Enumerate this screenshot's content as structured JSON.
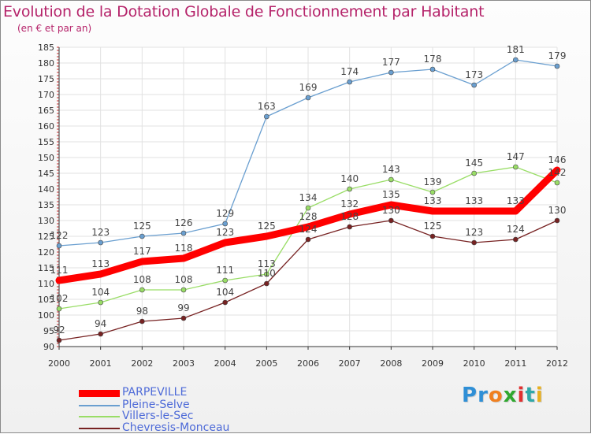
{
  "title": "Evolution de la Dotation Globale de Fonctionnement par Habitant",
  "subtitle": "(en € et par an)",
  "logo_letters": [
    "P",
    "r",
    "o",
    "x",
    "i",
    "t",
    "i"
  ],
  "logo_colors": [
    "#2f8fd6",
    "#2f8fd6",
    "#f08020",
    "#2fa82f",
    "#e03030",
    "#2fa8a8",
    "#e8b020"
  ],
  "chart_data": {
    "type": "line",
    "title": "Evolution de la Dotation Globale de Fonctionnement par Habitant",
    "subtitle": "(en € et par an)",
    "x": [
      "2000",
      "2001",
      "2002",
      "2003",
      "2004",
      "2005",
      "2006",
      "2007",
      "2008",
      "2009",
      "2010",
      "2011",
      "2012"
    ],
    "ylim": [
      90,
      185
    ],
    "yticks": [
      90,
      95,
      100,
      105,
      110,
      115,
      120,
      125,
      130,
      135,
      140,
      145,
      150,
      155,
      160,
      165,
      170,
      175,
      180,
      185
    ],
    "grid": true,
    "legend_position": "bottom-left",
    "series": [
      {
        "name": "PARPEVILLE",
        "color": "#ff0000",
        "values": [
          111,
          113,
          117,
          118,
          123,
          125,
          128,
          132,
          135,
          133,
          133,
          133,
          146
        ]
      },
      {
        "name": "Pleine-Selve",
        "color": "#6a9fd0",
        "values": [
          122,
          123,
          125,
          126,
          129,
          163,
          169,
          174,
          177,
          178,
          173,
          181,
          179
        ]
      },
      {
        "name": "Villers-le-Sec",
        "color": "#99dd66",
        "values": [
          102,
          104,
          108,
          108,
          111,
          113,
          134,
          140,
          143,
          139,
          145,
          147,
          142
        ]
      },
      {
        "name": "Chevresis-Monceau",
        "color": "#772222",
        "values": [
          92,
          94,
          98,
          99,
          104,
          110,
          124,
          128,
          130,
          125,
          123,
          124,
          130
        ]
      }
    ]
  }
}
